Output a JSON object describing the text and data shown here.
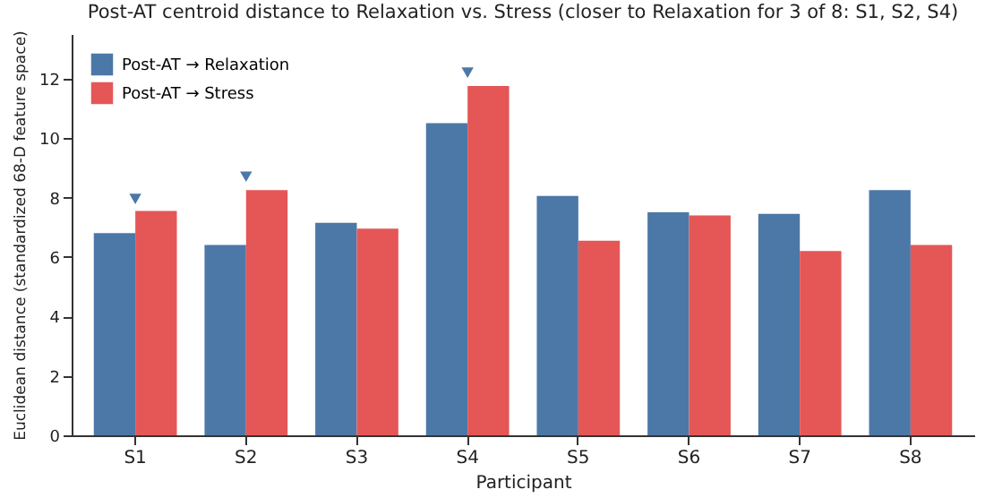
{
  "chart_data": {
    "type": "bar",
    "title": "Post-AT centroid distance to Relaxation vs. Stress (closer to Relaxation for 3 of 8: S1, S2, S4)",
    "xlabel": "Participant",
    "ylabel": "Euclidean distance (standardized 68-D feature space)",
    "categories": [
      "S1",
      "S2",
      "S3",
      "S4",
      "S5",
      "S6",
      "S7",
      "S8"
    ],
    "series": [
      {
        "name": "Post-AT → Relaxation",
        "color": "#4c78a8",
        "values": [
          6.8,
          6.4,
          7.15,
          10.5,
          8.05,
          7.5,
          7.45,
          8.25
        ]
      },
      {
        "name": "Post-AT → Stress",
        "color": "#e45756",
        "values": [
          7.55,
          8.25,
          6.95,
          11.75,
          6.55,
          7.4,
          6.2,
          6.4
        ]
      },
      {
        "type": "scatter",
        "x": [
          "S1",
          "S2",
          "S4"
        ],
        "color": "#4c78a8",
        "marker": "triangle",
        "values": [
          7.95,
          8.7,
          12.2
        ]
      }
    ],
    "ylim": [
      0,
      13.5
    ],
    "yticks": [
      0,
      2,
      4,
      6,
      8,
      10,
      12
    ],
    "grid": false,
    "legend": "top left"
  }
}
